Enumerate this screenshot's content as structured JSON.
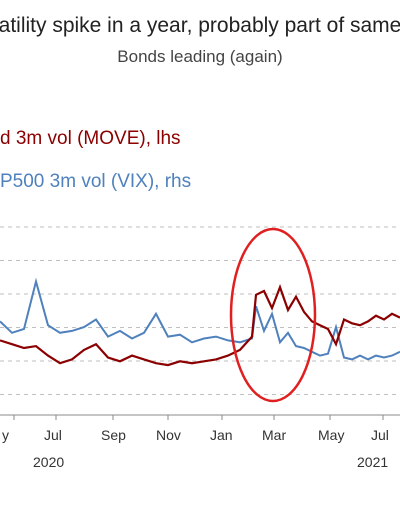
{
  "header": {
    "title": "atility spike in a year, probably part of same",
    "subtitle": "Bonds leading (again)"
  },
  "chart_data": {
    "type": "line",
    "title": "atility spike in a year, probably part of same",
    "subtitle": "Bonds leading (again)",
    "xlabel": "",
    "ylabel": "",
    "grid": true,
    "legend_placement": "top-left",
    "x_ticks": [
      "y",
      "Jul",
      "Sep",
      "Nov",
      "Jan",
      "Mar",
      "May",
      "Jul"
    ],
    "x_years": [
      "2020",
      "2021"
    ],
    "series": [
      {
        "name": "d 3m vol (MOVE), lhs",
        "axis": "left",
        "color": "#8b0000",
        "x": [
          0,
          0.03,
          0.06,
          0.09,
          0.12,
          0.15,
          0.18,
          0.21,
          0.24,
          0.27,
          0.3,
          0.33,
          0.36,
          0.39,
          0.42,
          0.45,
          0.48,
          0.51,
          0.54,
          0.57,
          0.6,
          0.63,
          0.64,
          0.66,
          0.68,
          0.7,
          0.72,
          0.74,
          0.76,
          0.78,
          0.8,
          0.82,
          0.84,
          0.86,
          0.88,
          0.9,
          0.92,
          0.94,
          0.96,
          0.98,
          1.0
        ],
        "values": [
          3.4,
          3.2,
          3.0,
          3.1,
          2.6,
          2.2,
          2.4,
          2.9,
          3.2,
          2.5,
          2.3,
          2.6,
          2.4,
          2.2,
          2.1,
          2.3,
          2.2,
          2.3,
          2.4,
          2.6,
          2.9,
          3.6,
          5.8,
          6.0,
          5.1,
          6.2,
          5.0,
          5.7,
          4.9,
          4.4,
          4.2,
          4.0,
          3.2,
          4.5,
          4.3,
          4.2,
          4.4,
          4.7,
          4.5,
          4.8,
          4.6
        ]
      },
      {
        "name": "P500 3m vol (VIX), rhs",
        "axis": "right",
        "color": "#4f81bd",
        "x": [
          0,
          0.03,
          0.06,
          0.09,
          0.12,
          0.15,
          0.18,
          0.21,
          0.24,
          0.27,
          0.3,
          0.33,
          0.36,
          0.39,
          0.42,
          0.45,
          0.48,
          0.51,
          0.54,
          0.57,
          0.6,
          0.63,
          0.64,
          0.66,
          0.68,
          0.7,
          0.72,
          0.74,
          0.76,
          0.78,
          0.8,
          0.82,
          0.84,
          0.86,
          0.88,
          0.9,
          0.92,
          0.94,
          0.96,
          0.98,
          1.0
        ],
        "values": [
          4.4,
          3.8,
          4.0,
          6.5,
          4.2,
          3.8,
          3.9,
          4.1,
          4.5,
          3.6,
          3.9,
          3.5,
          3.8,
          4.8,
          3.6,
          3.7,
          3.3,
          3.5,
          3.6,
          3.4,
          3.3,
          3.5,
          5.2,
          3.9,
          4.8,
          3.3,
          3.8,
          3.1,
          3.0,
          2.8,
          2.6,
          2.7,
          4.1,
          2.5,
          2.4,
          2.6,
          2.4,
          2.6,
          2.5,
          2.6,
          2.8
        ]
      }
    ],
    "ylim": [
      0,
      10
    ],
    "annotation": {
      "type": "ellipse",
      "color": "#e02020"
    }
  }
}
